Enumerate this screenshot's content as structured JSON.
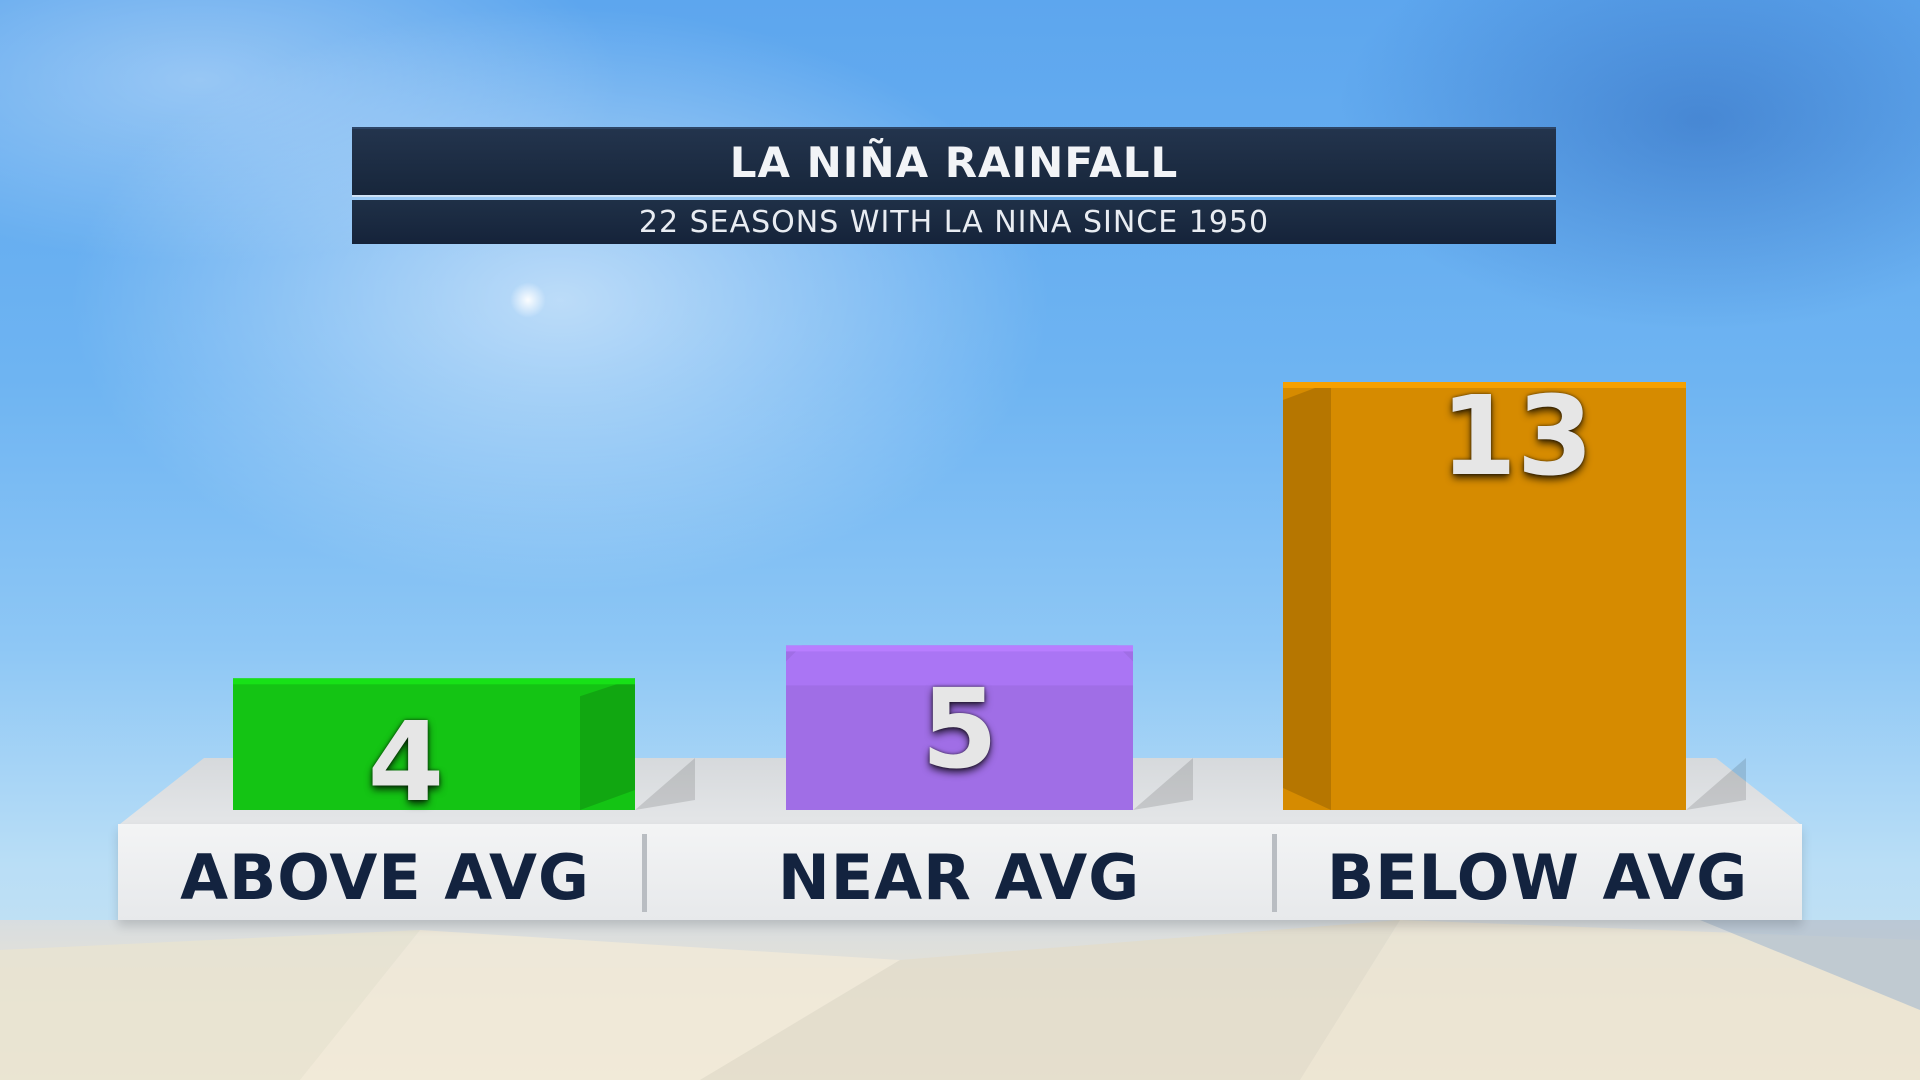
{
  "title": "LA NIÑA RAINFALL",
  "subtitle": "22 SEASONS WITH LA NINA SINCE 1950",
  "chart_data": {
    "type": "bar",
    "categories": [
      "ABOVE AVG",
      "NEAR AVG",
      "BELOW AVG"
    ],
    "values": [
      4,
      5,
      13
    ],
    "title": "LA NIÑA RAINFALL",
    "subtitle": "22 SEASONS WITH LA NINA SINCE 1950",
    "ylim": [
      0,
      13
    ],
    "grid": false,
    "legend": "none",
    "colors": [
      "#14c414",
      "#a06ee6",
      "#d68b00"
    ]
  }
}
